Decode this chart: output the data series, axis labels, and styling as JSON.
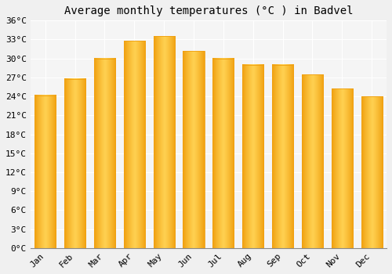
{
  "title": "Average monthly temperatures (°C ) in Badvel",
  "months": [
    "Jan",
    "Feb",
    "Mar",
    "Apr",
    "May",
    "Jun",
    "Jul",
    "Aug",
    "Sep",
    "Oct",
    "Nov",
    "Dec"
  ],
  "values": [
    24.2,
    26.8,
    30.0,
    32.8,
    33.5,
    31.2,
    30.0,
    29.0,
    29.0,
    27.5,
    25.2,
    24.0
  ],
  "bar_color_center": "#FFD050",
  "bar_color_edge": "#F0A010",
  "background_color": "#F0F0F0",
  "plot_bg_color": "#F5F5F5",
  "grid_color": "#FFFFFF",
  "ylim": [
    0,
    36
  ],
  "yticks": [
    0,
    3,
    6,
    9,
    12,
    15,
    18,
    21,
    24,
    27,
    30,
    33,
    36
  ],
  "title_fontsize": 10,
  "tick_fontsize": 8,
  "font_family": "monospace"
}
